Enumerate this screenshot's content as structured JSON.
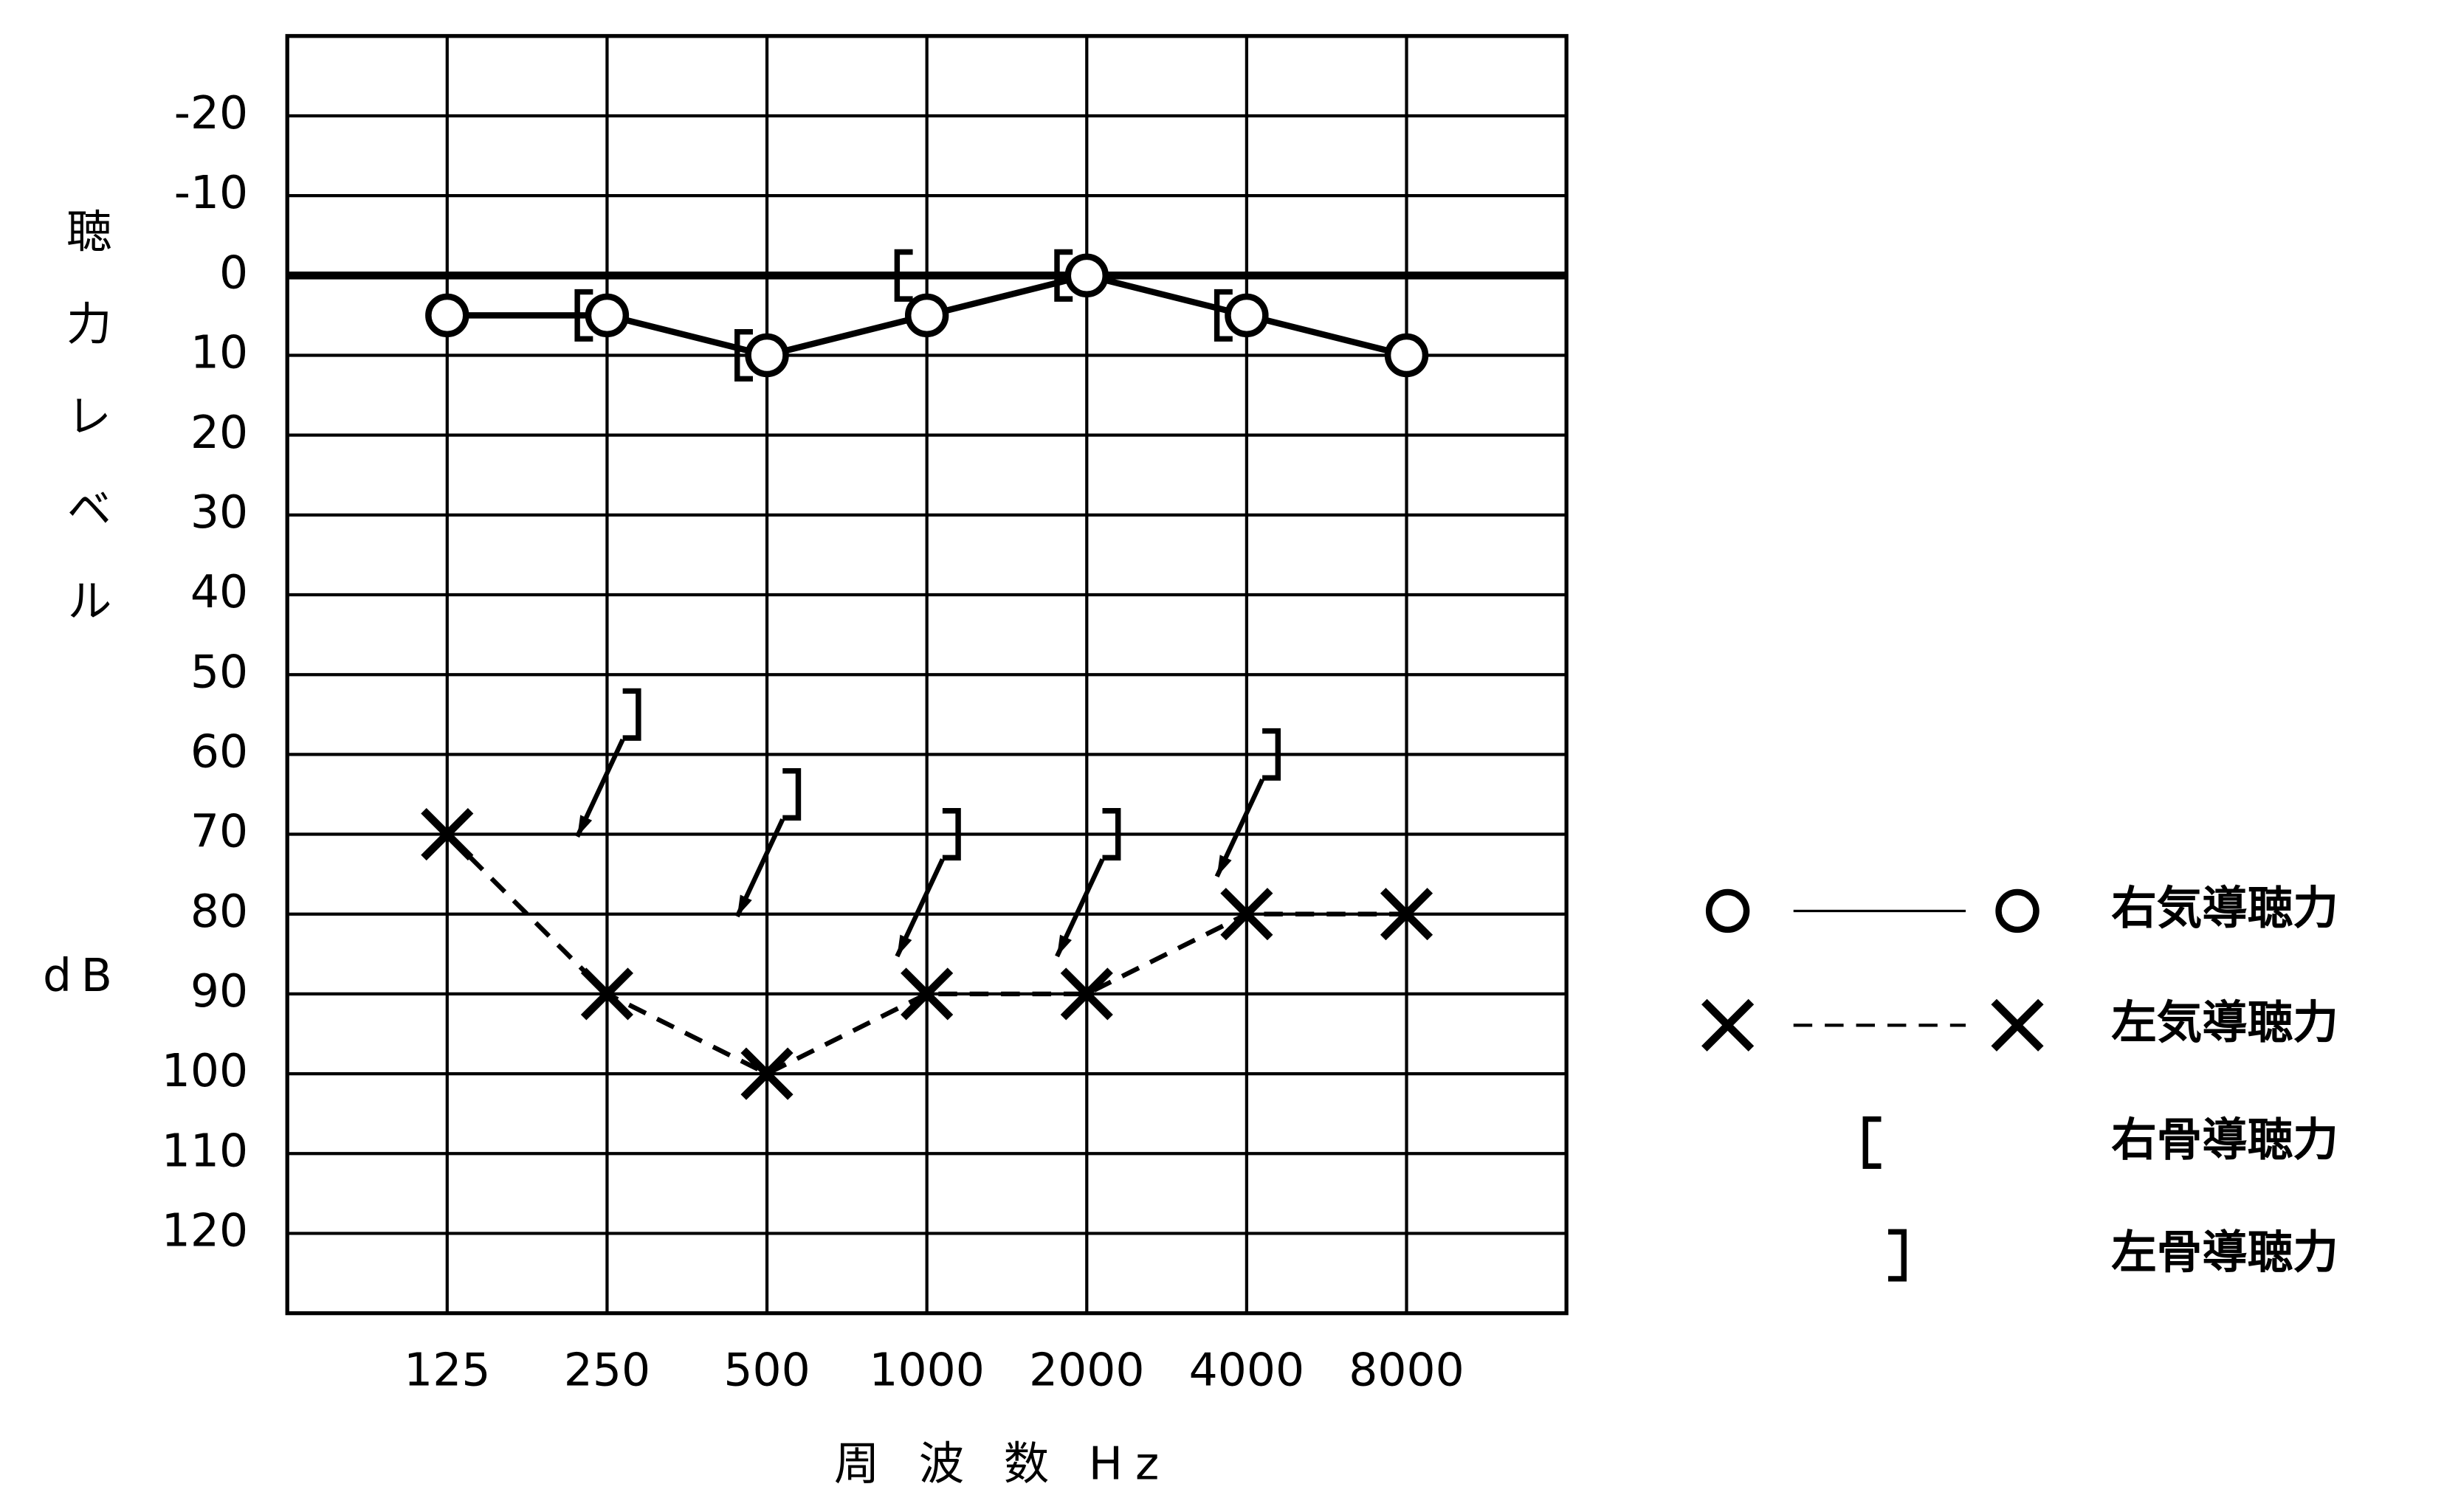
{
  "chart_data": {
    "type": "audiogram",
    "categories": [
      "125",
      "250",
      "500",
      "1000",
      "2000",
      "4000",
      "8000"
    ],
    "x_label": "周 波 数 Hz",
    "y_label": "聴力レベル",
    "y_unit": "dB",
    "ylim": [
      -30,
      130
    ],
    "y_inverted": true,
    "yticks": [
      -20,
      -10,
      0,
      10,
      20,
      30,
      40,
      50,
      60,
      70,
      80,
      90,
      100,
      110,
      120
    ],
    "grid": true,
    "reference_line": 0,
    "series": [
      {
        "name": "右気導聴力",
        "color": "#000000",
        "marker": "o",
        "line": "solid",
        "values": [
          5,
          5,
          10,
          5,
          0,
          5,
          10
        ]
      },
      {
        "name": "左気導聴力",
        "color": "#000000",
        "marker": "x",
        "line": "dashed",
        "values": [
          70,
          90,
          100,
          90,
          90,
          80,
          80
        ]
      },
      {
        "name": "右骨導聴力",
        "color": "#000000",
        "marker": "[",
        "line": "none",
        "values": [
          null,
          5,
          10,
          0,
          0,
          5,
          null
        ]
      },
      {
        "name": "左骨導聴力",
        "color": "#000000",
        "marker": "]",
        "line": "none",
        "no_response": true,
        "values": [
          null,
          55,
          65,
          70,
          70,
          60,
          null
        ]
      }
    ],
    "legend": "right"
  }
}
